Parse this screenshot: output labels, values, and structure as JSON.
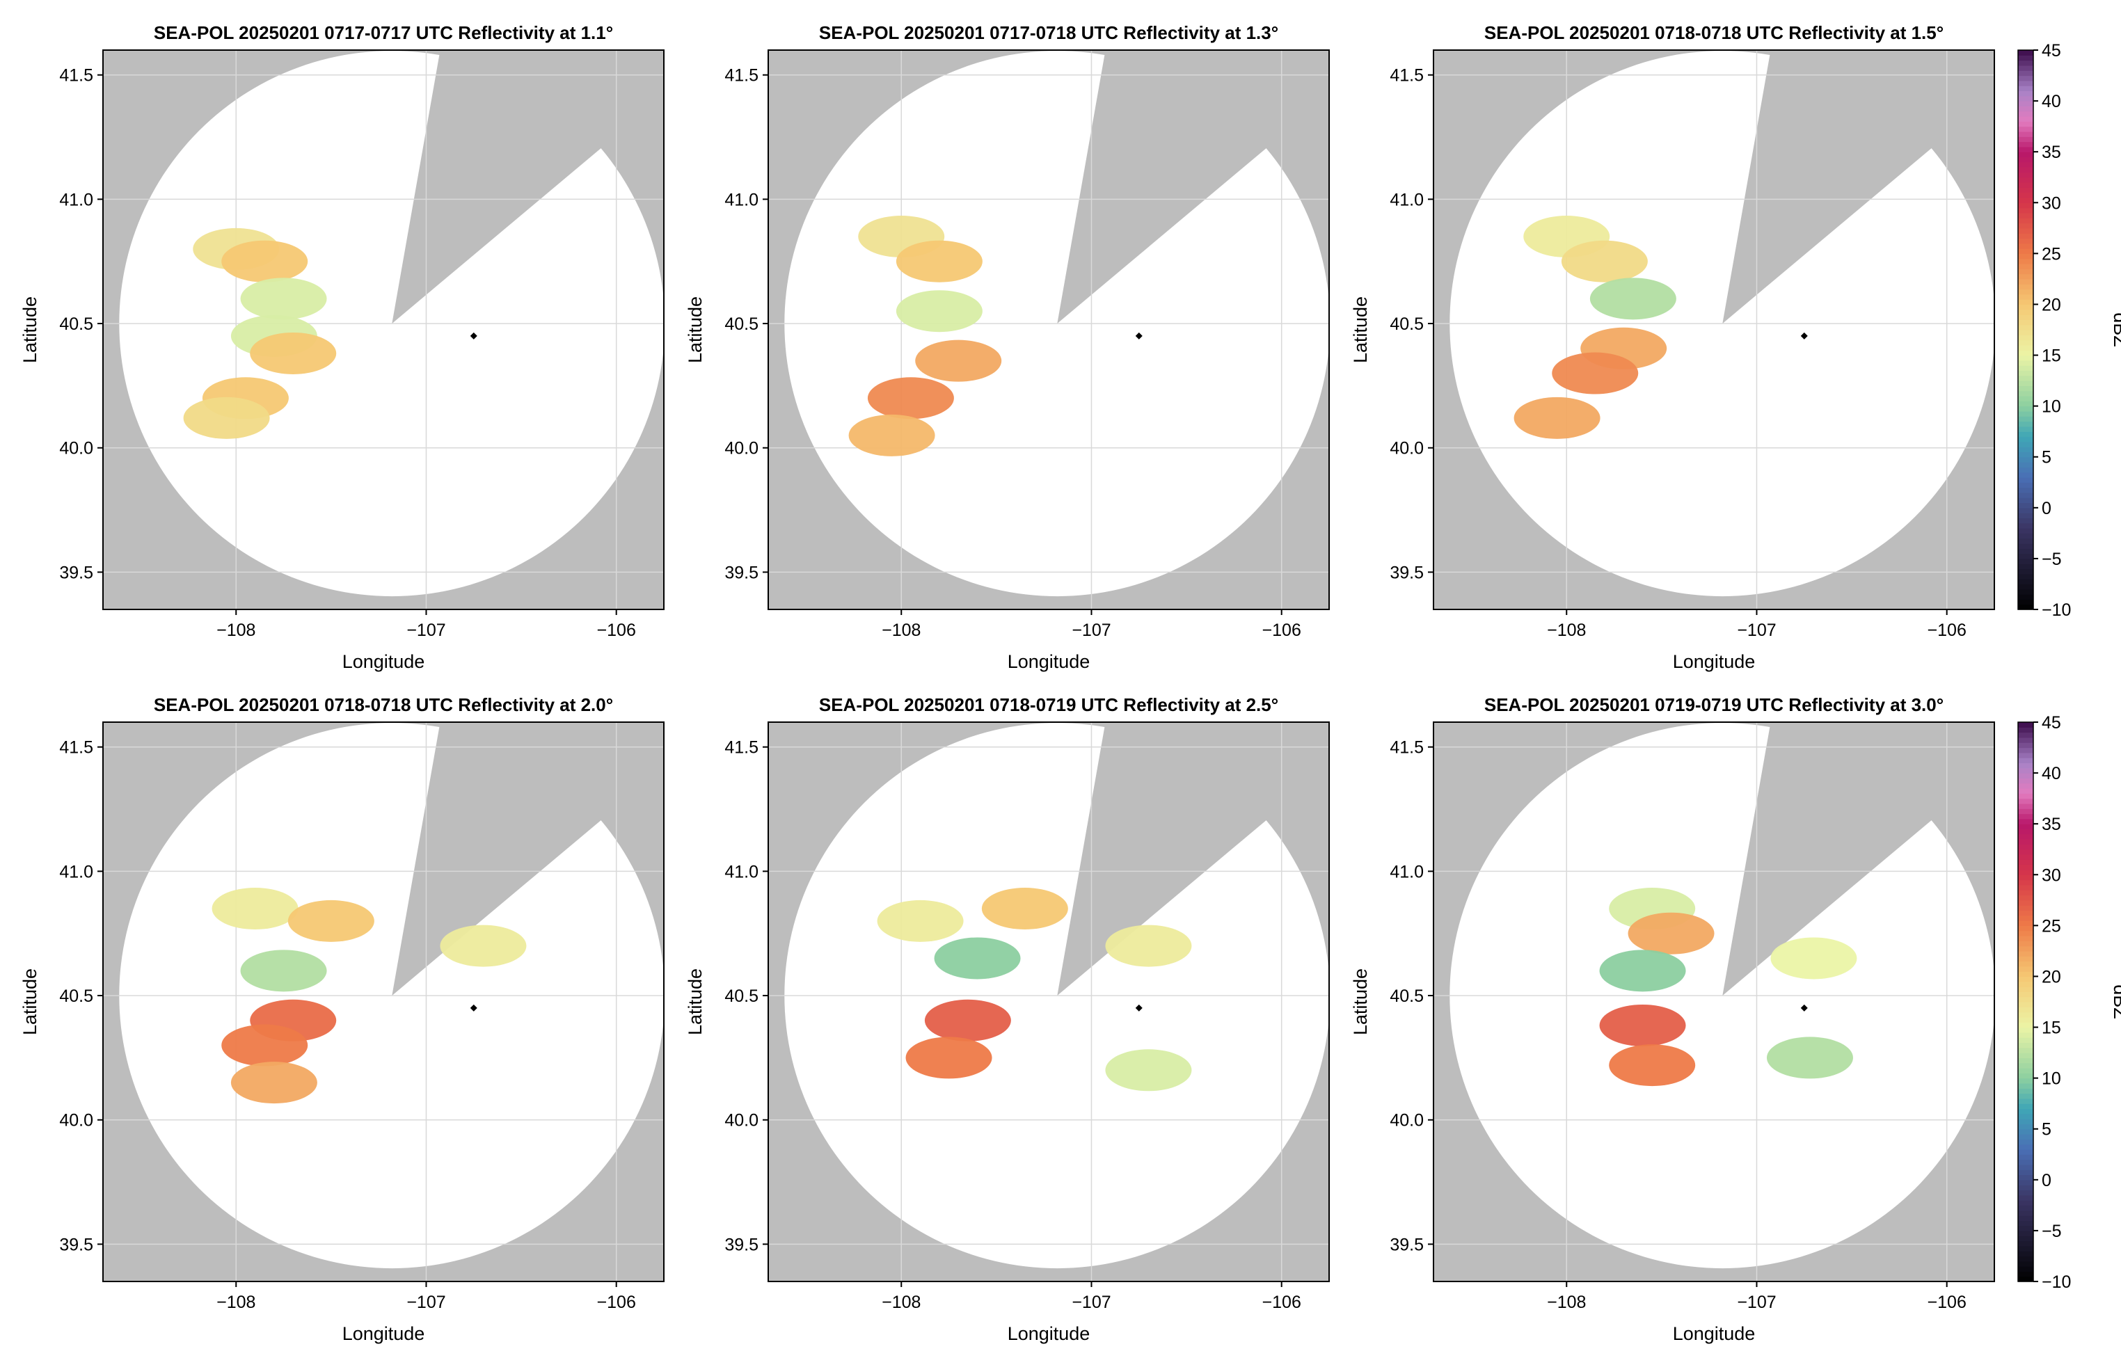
{
  "chart_data": [
    {
      "type": "heatmap",
      "title": "SEA-POL 20250201 0717-0717 UTC Reflectivity at 1.1°",
      "xlabel": "Longitude",
      "ylabel": "Latitude",
      "xlim": [
        -108.7,
        -105.75
      ],
      "ylim": [
        39.35,
        41.6
      ],
      "xticks": [
        -108,
        -107,
        -106
      ],
      "yticks": [
        39.5,
        40.0,
        40.5,
        41.0,
        41.5
      ],
      "xtick_labels": [
        "−108",
        "−107",
        "−106"
      ],
      "ytick_labels": [
        "39.5",
        "40.0",
        "40.5",
        "41.0",
        "41.5"
      ],
      "grid": true,
      "radar_location": [
        -106.75,
        40.45
      ],
      "blocked_sector_deg": [
        10,
        50
      ],
      "echo_cells": [
        {
          "lon": -108.0,
          "lat": 40.8,
          "dbz": 17
        },
        {
          "lon": -107.85,
          "lat": 40.75,
          "dbz": 20
        },
        {
          "lon": -107.75,
          "lat": 40.6,
          "dbz": 14
        },
        {
          "lon": -107.8,
          "lat": 40.45,
          "dbz": 14
        },
        {
          "lon": -107.7,
          "lat": 40.38,
          "dbz": 20
        },
        {
          "lon": -107.95,
          "lat": 40.2,
          "dbz": 20
        },
        {
          "lon": -108.05,
          "lat": 40.12,
          "dbz": 18
        }
      ]
    },
    {
      "type": "heatmap",
      "title": "SEA-POL 20250201 0717-0718 UTC Reflectivity at 1.3°",
      "xlabel": "Longitude",
      "ylabel": "Latitude",
      "xlim": [
        -108.7,
        -105.75
      ],
      "ylim": [
        39.35,
        41.6
      ],
      "xticks": [
        -108,
        -107,
        -106
      ],
      "yticks": [
        39.5,
        40.0,
        40.5,
        41.0,
        41.5
      ],
      "xtick_labels": [
        "−108",
        "−107",
        "−106"
      ],
      "ytick_labels": [
        "39.5",
        "40.0",
        "40.5",
        "41.0",
        "41.5"
      ],
      "grid": true,
      "radar_location": [
        -106.75,
        40.45
      ],
      "blocked_sector_deg": [
        10,
        50
      ],
      "echo_cells": [
        {
          "lon": -108.0,
          "lat": 40.85,
          "dbz": 17
        },
        {
          "lon": -107.8,
          "lat": 40.75,
          "dbz": 20
        },
        {
          "lon": -107.8,
          "lat": 40.55,
          "dbz": 14
        },
        {
          "lon": -107.7,
          "lat": 40.35,
          "dbz": 22
        },
        {
          "lon": -107.95,
          "lat": 40.2,
          "dbz": 24
        },
        {
          "lon": -108.05,
          "lat": 40.05,
          "dbz": 21
        }
      ]
    },
    {
      "type": "heatmap",
      "title": "SEA-POL 20250201 0718-0718 UTC Reflectivity at 1.5°",
      "xlabel": "Longitude",
      "ylabel": "Latitude",
      "xlim": [
        -108.7,
        -105.75
      ],
      "ylim": [
        39.35,
        41.6
      ],
      "xticks": [
        -108,
        -107,
        -106
      ],
      "yticks": [
        39.5,
        40.0,
        40.5,
        41.0,
        41.5
      ],
      "xtick_labels": [
        "−108",
        "−107",
        "−106"
      ],
      "ytick_labels": [
        "39.5",
        "40.0",
        "40.5",
        "41.0",
        "41.5"
      ],
      "grid": true,
      "radar_location": [
        -106.75,
        40.45
      ],
      "blocked_sector_deg": [
        10,
        50
      ],
      "echo_cells": [
        {
          "lon": -108.0,
          "lat": 40.85,
          "dbz": 16
        },
        {
          "lon": -107.8,
          "lat": 40.75,
          "dbz": 18
        },
        {
          "lon": -107.65,
          "lat": 40.6,
          "dbz": 12
        },
        {
          "lon": -107.7,
          "lat": 40.4,
          "dbz": 22
        },
        {
          "lon": -107.85,
          "lat": 40.3,
          "dbz": 24
        },
        {
          "lon": -108.05,
          "lat": 40.12,
          "dbz": 22
        }
      ]
    },
    {
      "type": "heatmap",
      "title": "SEA-POL 20250201 0718-0718 UTC Reflectivity at 2.0°",
      "xlabel": "Longitude",
      "ylabel": "Latitude",
      "xlim": [
        -108.7,
        -105.75
      ],
      "ylim": [
        39.35,
        41.6
      ],
      "xticks": [
        -108,
        -107,
        -106
      ],
      "yticks": [
        39.5,
        40.0,
        40.5,
        41.0,
        41.5
      ],
      "xtick_labels": [
        "−108",
        "−107",
        "−106"
      ],
      "ytick_labels": [
        "39.5",
        "40.0",
        "40.5",
        "41.0",
        "41.5"
      ],
      "grid": true,
      "radar_location": [
        -106.75,
        40.45
      ],
      "blocked_sector_deg": [
        10,
        50
      ],
      "echo_cells": [
        {
          "lon": -107.9,
          "lat": 40.85,
          "dbz": 16
        },
        {
          "lon": -107.5,
          "lat": 40.8,
          "dbz": 20
        },
        {
          "lon": -107.75,
          "lat": 40.6,
          "dbz": 12
        },
        {
          "lon": -107.7,
          "lat": 40.4,
          "dbz": 26
        },
        {
          "lon": -107.85,
          "lat": 40.3,
          "dbz": 25
        },
        {
          "lon": -107.8,
          "lat": 40.15,
          "dbz": 22
        },
        {
          "lon": -106.7,
          "lat": 40.7,
          "dbz": 16
        }
      ]
    },
    {
      "type": "heatmap",
      "title": "SEA-POL 20250201 0718-0719 UTC Reflectivity at 2.5°",
      "xlabel": "Longitude",
      "ylabel": "Latitude",
      "xlim": [
        -108.7,
        -105.75
      ],
      "ylim": [
        39.35,
        41.6
      ],
      "xticks": [
        -108,
        -107,
        -106
      ],
      "yticks": [
        39.5,
        40.0,
        40.5,
        41.0,
        41.5
      ],
      "xtick_labels": [
        "−108",
        "−107",
        "−106"
      ],
      "ytick_labels": [
        "39.5",
        "40.0",
        "40.5",
        "41.0",
        "41.5"
      ],
      "grid": true,
      "radar_location": [
        -106.75,
        40.45
      ],
      "blocked_sector_deg": [
        10,
        50
      ],
      "echo_cells": [
        {
          "lon": -107.9,
          "lat": 40.8,
          "dbz": 16
        },
        {
          "lon": -107.35,
          "lat": 40.85,
          "dbz": 20
        },
        {
          "lon": -107.6,
          "lat": 40.65,
          "dbz": 10
        },
        {
          "lon": -107.65,
          "lat": 40.4,
          "dbz": 27
        },
        {
          "lon": -107.75,
          "lat": 40.25,
          "dbz": 25
        },
        {
          "lon": -106.7,
          "lat": 40.7,
          "dbz": 16
        },
        {
          "lon": -106.7,
          "lat": 40.2,
          "dbz": 14
        }
      ]
    },
    {
      "type": "heatmap",
      "title": "SEA-POL 20250201 0719-0719 UTC Reflectivity at 3.0°",
      "xlabel": "Longitude",
      "ylabel": "Latitude",
      "xlim": [
        -108.7,
        -105.75
      ],
      "ylim": [
        39.35,
        41.6
      ],
      "xticks": [
        -108,
        -107,
        -106
      ],
      "yticks": [
        39.5,
        40.0,
        40.5,
        41.0,
        41.5
      ],
      "xtick_labels": [
        "−108",
        "−107",
        "−106"
      ],
      "ytick_labels": [
        "39.5",
        "40.0",
        "40.5",
        "41.0",
        "41.5"
      ],
      "grid": true,
      "radar_location": [
        -106.75,
        40.45
      ],
      "blocked_sector_deg": [
        10,
        50
      ],
      "echo_cells": [
        {
          "lon": -107.55,
          "lat": 40.85,
          "dbz": 14
        },
        {
          "lon": -107.45,
          "lat": 40.75,
          "dbz": 22
        },
        {
          "lon": -107.6,
          "lat": 40.6,
          "dbz": 10
        },
        {
          "lon": -107.6,
          "lat": 40.38,
          "dbz": 27
        },
        {
          "lon": -107.55,
          "lat": 40.22,
          "dbz": 25
        },
        {
          "lon": -106.7,
          "lat": 40.65,
          "dbz": 15
        },
        {
          "lon": -106.72,
          "lat": 40.25,
          "dbz": 12
        }
      ]
    }
  ],
  "colorbar": {
    "label": "dBZ",
    "min": -10,
    "max": 45,
    "ticks": [
      -10,
      -5,
      0,
      5,
      10,
      15,
      20,
      25,
      30,
      35,
      40,
      45
    ],
    "tick_labels": [
      "−10",
      "−5",
      "0",
      "5",
      "10",
      "15",
      "20",
      "25",
      "30",
      "35",
      "40",
      "45"
    ],
    "stops": [
      {
        "v": -10,
        "c": "#000000"
      },
      {
        "v": -2,
        "c": "#3b3564"
      },
      {
        "v": 3,
        "c": "#4a6fb5"
      },
      {
        "v": 7,
        "c": "#3fa6b6"
      },
      {
        "v": 10,
        "c": "#8ccfa0"
      },
      {
        "v": 15,
        "c": "#ebf4a6"
      },
      {
        "v": 20,
        "c": "#f5c873"
      },
      {
        "v": 25,
        "c": "#ee7a48"
      },
      {
        "v": 30,
        "c": "#d5364a"
      },
      {
        "v": 35,
        "c": "#b8176a"
      },
      {
        "v": 38,
        "c": "#e27bbf"
      },
      {
        "v": 41,
        "c": "#a883c7"
      },
      {
        "v": 45,
        "c": "#3b0a4a"
      }
    ]
  },
  "colors": {
    "background_mask": "#bdbdbd",
    "grid": "#d9d9d9"
  }
}
